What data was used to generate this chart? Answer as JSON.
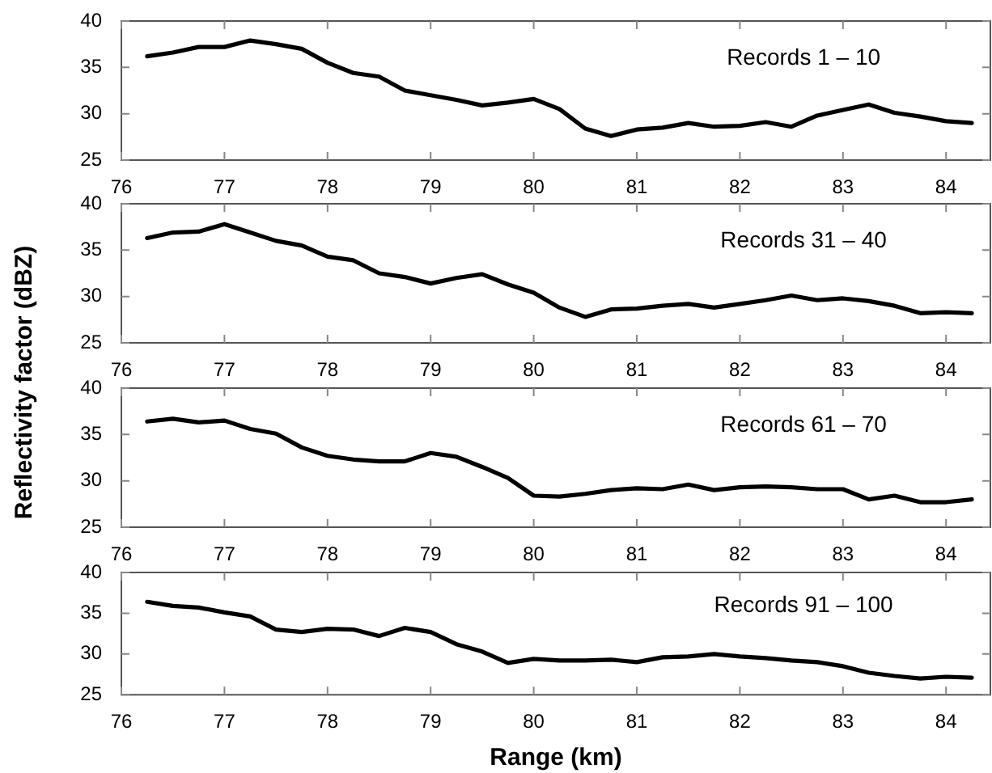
{
  "chart_data": [
    {
      "type": "line",
      "ylabel": "Reflectivity factor (dBZ)",
      "annotations": [
        "Records 1 – 10"
      ],
      "marker": "none",
      "grid": false,
      "x": [
        76.25,
        76.5,
        76.75,
        77,
        77.25,
        77.5,
        77.75,
        78,
        78.25,
        78.5,
        78.75,
        79,
        79.25,
        79.5,
        79.75,
        80,
        80.25,
        80.5,
        80.75,
        81,
        81.25,
        81.5,
        81.75,
        82,
        82.25,
        82.5,
        82.75,
        83,
        83.25,
        83.5,
        83.75,
        84,
        84.25
      ],
      "series": [
        {
          "color": "#000000",
          "values": [
            36.2,
            36.6,
            37.2,
            37.2,
            37.9,
            37.5,
            37.0,
            35.5,
            34.4,
            34.0,
            32.5,
            32.0,
            31.5,
            30.9,
            31.2,
            31.6,
            30.5,
            28.4,
            27.6,
            28.3,
            28.5,
            29.0,
            28.6,
            28.7,
            29.1,
            28.6,
            29.8,
            30.4,
            31.0,
            30.1,
            29.7,
            29.2,
            29.0
          ]
        }
      ],
      "xlim": [
        76,
        84.43
      ],
      "xticks": [
        76,
        77,
        78,
        79,
        80,
        81,
        82,
        83,
        84
      ],
      "ylim": [
        25,
        40
      ],
      "yticks": [
        25,
        30,
        35,
        40
      ]
    },
    {
      "type": "line",
      "annotations": [
        "Records 31 – 40"
      ],
      "marker": "none",
      "grid": false,
      "x": [
        76.25,
        76.5,
        76.75,
        77,
        77.25,
        77.5,
        77.75,
        78,
        78.25,
        78.5,
        78.75,
        79,
        79.25,
        79.5,
        79.75,
        80,
        80.25,
        80.5,
        80.75,
        81,
        81.25,
        81.5,
        81.75,
        82,
        82.25,
        82.5,
        82.75,
        83,
        83.25,
        83.5,
        83.75,
        84,
        84.25
      ],
      "series": [
        {
          "color": "#000000",
          "values": [
            36.3,
            36.9,
            37.0,
            37.8,
            36.9,
            36.0,
            35.5,
            34.3,
            33.9,
            32.5,
            32.1,
            31.4,
            32.0,
            32.4,
            31.3,
            30.4,
            28.8,
            27.8,
            28.6,
            28.7,
            29.0,
            29.2,
            28.8,
            29.2,
            29.6,
            30.1,
            29.6,
            29.8,
            29.5,
            29.0,
            28.2,
            28.3,
            28.2
          ]
        }
      ],
      "xlim": [
        76,
        84.43
      ],
      "xticks": [
        76,
        77,
        78,
        79,
        80,
        81,
        82,
        83,
        84
      ],
      "ylim": [
        25,
        40
      ],
      "yticks": [
        25,
        30,
        35,
        40
      ]
    },
    {
      "type": "line",
      "annotations": [
        "Records 61 – 70"
      ],
      "marker": "none",
      "grid": false,
      "x": [
        76.25,
        76.5,
        76.75,
        77,
        77.25,
        77.5,
        77.75,
        78,
        78.25,
        78.5,
        78.75,
        79,
        79.25,
        79.5,
        79.75,
        80,
        80.25,
        80.5,
        80.75,
        81,
        81.25,
        81.5,
        81.75,
        82,
        82.25,
        82.5,
        82.75,
        83,
        83.25,
        83.5,
        83.75,
        84,
        84.25
      ],
      "series": [
        {
          "color": "#000000",
          "values": [
            36.4,
            36.7,
            36.3,
            36.5,
            35.6,
            35.1,
            33.6,
            32.7,
            32.3,
            32.1,
            32.1,
            33.0,
            32.6,
            31.5,
            30.3,
            28.4,
            28.3,
            28.6,
            29.0,
            29.2,
            29.1,
            29.6,
            29.0,
            29.3,
            29.4,
            29.3,
            29.1,
            29.1,
            28.0,
            28.4,
            27.7,
            27.7,
            28.0
          ]
        }
      ],
      "xlim": [
        76,
        84.43
      ],
      "xticks": [
        76,
        77,
        78,
        79,
        80,
        81,
        82,
        83,
        84
      ],
      "ylim": [
        25,
        40
      ],
      "yticks": [
        25,
        30,
        35,
        40
      ]
    },
    {
      "type": "line",
      "xlabel": "Range (km)",
      "annotations": [
        "Records 91 – 100"
      ],
      "marker": "none",
      "grid": false,
      "x": [
        76.25,
        76.5,
        76.75,
        77,
        77.25,
        77.5,
        77.75,
        78,
        78.25,
        78.5,
        78.75,
        79,
        79.25,
        79.5,
        79.75,
        80,
        80.25,
        80.5,
        80.75,
        81,
        81.25,
        81.5,
        81.75,
        82,
        82.25,
        82.5,
        82.75,
        83,
        83.25,
        83.5,
        83.75,
        84,
        84.25
      ],
      "series": [
        {
          "color": "#000000",
          "values": [
            36.4,
            35.9,
            35.7,
            35.1,
            34.6,
            33.0,
            32.7,
            33.1,
            33.0,
            32.2,
            33.2,
            32.7,
            31.2,
            30.3,
            28.9,
            29.4,
            29.2,
            29.2,
            29.3,
            29.0,
            29.6,
            29.7,
            30.0,
            29.7,
            29.5,
            29.2,
            29.0,
            28.5,
            27.7,
            27.3,
            27.0,
            27.2,
            27.1
          ]
        }
      ],
      "xlim": [
        76,
        84.43
      ],
      "xticks": [
        76,
        77,
        78,
        79,
        80,
        81,
        82,
        83,
        84
      ],
      "ylim": [
        25,
        40
      ],
      "yticks": [
        25,
        30,
        35,
        40
      ]
    }
  ]
}
